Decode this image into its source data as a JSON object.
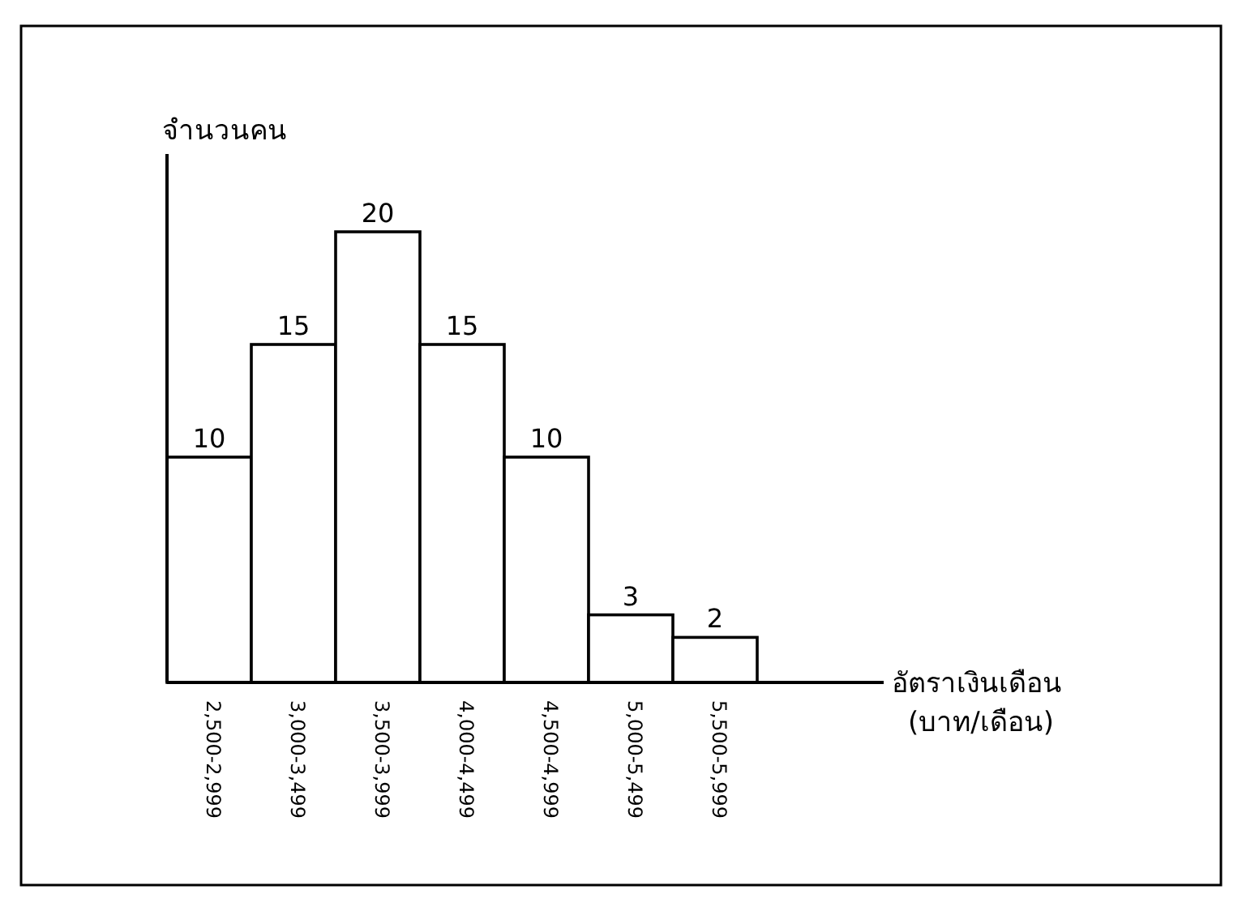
{
  "chart_data": {
    "type": "bar",
    "xlabel": "อัตราเงินเดือน (บาท/เดือน)",
    "ylabel": "จำนวนคน",
    "categories": [
      "2,500-2,999",
      "3,000-3,499",
      "3,500-3,999",
      "4,000-4,499",
      "4,500-4,999",
      "5,000-5,499",
      "5,500-5,999"
    ],
    "values": [
      10,
      15,
      20,
      15,
      10,
      3,
      2
    ],
    "color": "#ffffff",
    "data_labels": true
  }
}
